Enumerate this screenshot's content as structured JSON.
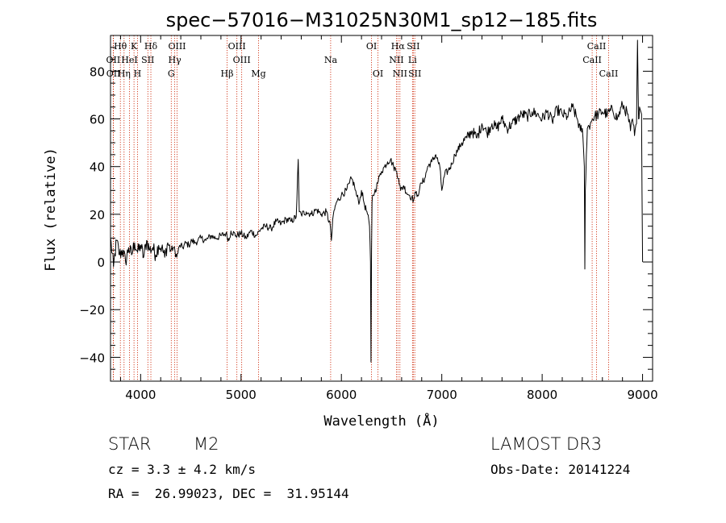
{
  "chart_data": {
    "type": "line",
    "title": "spec−57016−M31025N30M1_sp12−185.fits",
    "xlabel": "Wavelength (Å)",
    "ylabel": "Flux (relative)",
    "xlim": [
      3700,
      9100
    ],
    "ylim": [
      -50,
      95
    ],
    "xticks": [
      {
        "value": 4000,
        "label": "4000"
      },
      {
        "value": 5000,
        "label": "5000"
      },
      {
        "value": 6000,
        "label": "6000"
      },
      {
        "value": 7000,
        "label": "7000"
      },
      {
        "value": 8000,
        "label": "8000"
      },
      {
        "value": 9000,
        "label": "9000"
      }
    ],
    "yticks": [
      {
        "value": -40,
        "label": "−40"
      },
      {
        "value": -20,
        "label": "−20"
      },
      {
        "value": 0,
        "label": "0"
      },
      {
        "value": 20,
        "label": "20"
      },
      {
        "value": 40,
        "label": "40"
      },
      {
        "value": 60,
        "label": "60"
      },
      {
        "value": 80,
        "label": "80"
      }
    ],
    "series": [
      {
        "name": "flux",
        "x": [
          3700,
          3730,
          3760,
          3790,
          3820,
          3850,
          3880,
          3910,
          3940,
          3970,
          4000,
          4030,
          4060,
          4090,
          4120,
          4150,
          4180,
          4210,
          4240,
          4270,
          4300,
          4330,
          4360,
          4390,
          4420,
          4450,
          4480,
          4510,
          4540,
          4570,
          4600,
          4650,
          4700,
          4750,
          4800,
          4850,
          4880,
          4900,
          4950,
          5000,
          5050,
          5100,
          5150,
          5200,
          5250,
          5300,
          5350,
          5400,
          5450,
          5500,
          5550,
          5570,
          5580,
          5600,
          5650,
          5700,
          5750,
          5800,
          5850,
          5890,
          5900,
          5920,
          5950,
          6000,
          6050,
          6080,
          6100,
          6130,
          6150,
          6180,
          6200,
          6230,
          6260,
          6280,
          6290,
          6295,
          6300,
          6305,
          6310,
          6330,
          6360,
          6380,
          6400,
          6430,
          6460,
          6490,
          6520,
          6550,
          6570,
          6590,
          6620,
          6650,
          6680,
          6700,
          6720,
          6740,
          6760,
          6780,
          6800,
          6830,
          6860,
          6900,
          6940,
          6980,
          7000,
          7030,
          7060,
          7100,
          7130,
          7160,
          7200,
          7250,
          7300,
          7350,
          7400,
          7450,
          7500,
          7550,
          7600,
          7650,
          7700,
          7750,
          7800,
          7850,
          7900,
          7950,
          8000,
          8050,
          8100,
          8150,
          8200,
          8250,
          8300,
          8350,
          8380,
          8400,
          8420,
          8425,
          8430,
          8440,
          8450,
          8480,
          8500,
          8520,
          8560,
          8600,
          8650,
          8700,
          8750,
          8800,
          8850,
          8880,
          8900,
          8920,
          8940,
          8950,
          8960,
          8970,
          8990,
          9000
        ],
        "values": [
          10,
          -2,
          9,
          3,
          5,
          0,
          6,
          3,
          8,
          4,
          7,
          2,
          9,
          5,
          6,
          3,
          7,
          6,
          2,
          8,
          5,
          6,
          2,
          7,
          6,
          8,
          7,
          9,
          8,
          9,
          10,
          9,
          11,
          10,
          11,
          12,
          9,
          13,
          11,
          12,
          10,
          13,
          11,
          14,
          15,
          14,
          17,
          16,
          18,
          17,
          19,
          43,
          21,
          20,
          21,
          20,
          22,
          20,
          21,
          15,
          9,
          20,
          25,
          28,
          30,
          33,
          35,
          32,
          28,
          25,
          30,
          24,
          20,
          15,
          0,
          -42,
          5,
          25,
          28,
          29,
          33,
          36,
          38,
          40,
          42,
          43,
          40,
          38,
          35,
          30,
          32,
          29,
          28,
          27,
          26,
          29,
          28,
          31,
          33,
          35,
          40,
          42,
          45,
          40,
          30,
          37,
          38,
          41,
          45,
          47,
          50,
          52,
          55,
          52,
          58,
          54,
          58,
          56,
          60,
          56,
          58,
          60,
          62,
          61,
          63,
          62,
          60,
          63,
          59,
          64,
          62,
          61,
          65,
          60,
          55,
          56,
          40,
          -3,
          30,
          45,
          56,
          58,
          60,
          61,
          62,
          63,
          62,
          64,
          60,
          66,
          62,
          55,
          60,
          53,
          58,
          93,
          60,
          65,
          62,
          0
        ]
      }
    ],
    "line_labels": [
      {
        "label": "Hθ",
        "wavelength": 3798,
        "row": 1
      },
      {
        "label": "OII",
        "wavelength": 3727,
        "row": 2
      },
      {
        "label": "OII",
        "wavelength": 3729,
        "row": 3
      },
      {
        "label": "Hη",
        "wavelength": 3835,
        "row": 3
      },
      {
        "label": "K",
        "wavelength": 3934,
        "row": 1
      },
      {
        "label": "HeI",
        "wavelength": 3889,
        "row": 2
      },
      {
        "label": "H",
        "wavelength": 3969,
        "row": 3
      },
      {
        "label": "Hδ",
        "wavelength": 4102,
        "row": 1
      },
      {
        "label": "SII",
        "wavelength": 4072,
        "row": 2
      },
      {
        "label": "OIII",
        "wavelength": 4363,
        "row": 1
      },
      {
        "label": "Hγ",
        "wavelength": 4340,
        "row": 2
      },
      {
        "label": "G",
        "wavelength": 4305,
        "row": 3
      },
      {
        "label": "OIII",
        "wavelength": 4959,
        "row": 1
      },
      {
        "label": "OIII",
        "wavelength": 5007,
        "row": 2
      },
      {
        "label": "Hβ",
        "wavelength": 4861,
        "row": 3
      },
      {
        "label": "Mg",
        "wavelength": 5175,
        "row": 3
      },
      {
        "label": "Na",
        "wavelength": 5893,
        "row": 2
      },
      {
        "label": "OI",
        "wavelength": 6300,
        "row": 1
      },
      {
        "label": "OI",
        "wavelength": 6364,
        "row": 3
      },
      {
        "label": "Hα",
        "wavelength": 6563,
        "row": 1
      },
      {
        "label": "SII",
        "wavelength": 6716,
        "row": 1
      },
      {
        "label": "NII",
        "wavelength": 6548,
        "row": 2
      },
      {
        "label": "Li",
        "wavelength": 6708,
        "row": 2
      },
      {
        "label": "NII",
        "wavelength": 6583,
        "row": 3
      },
      {
        "label": "SII",
        "wavelength": 6731,
        "row": 3
      },
      {
        "label": "CaII",
        "wavelength": 8542,
        "row": 1
      },
      {
        "label": "CaII",
        "wavelength": 8498,
        "row": 2
      },
      {
        "label": "CaII",
        "wavelength": 8662,
        "row": 3
      }
    ],
    "line_wavelengths": [
      3727,
      3729,
      3798,
      3835,
      3889,
      3934,
      3969,
      4072,
      4102,
      4305,
      4340,
      4363,
      4861,
      4959,
      5007,
      5175,
      5893,
      6300,
      6364,
      6548,
      6563,
      6583,
      6708,
      6716,
      6731,
      8498,
      8542,
      8662
    ]
  },
  "info": {
    "object_class": "STAR",
    "subclass": "M2",
    "survey": "LAMOST DR3",
    "cz_text": "cz = 3.3 ± 4.2 km/s",
    "obs_date_text": "Obs-Date: 20141224",
    "radec_text": "RA =  26.99023, DEC =  31.95144"
  },
  "colors": {
    "spectrum": "#000000",
    "line_marker": "#cc2200",
    "axis": "#000000",
    "background": "#ffffff"
  }
}
